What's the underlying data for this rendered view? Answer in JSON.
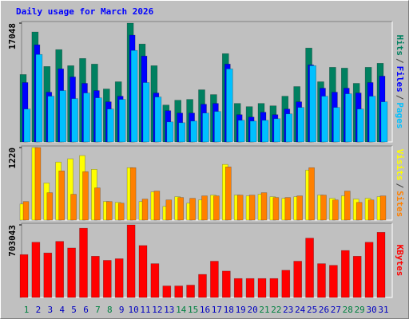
{
  "title": "Daily usage for March 2026",
  "legend_separator": "/",
  "chart_data": [
    {
      "type": "bar",
      "series": [
        {
          "name": "Hits",
          "color": "#008060",
          "values": [
            9677,
            15782,
            10829,
            13248,
            10944,
            11981,
            11174,
            7603,
            8640,
            17048,
            14054,
            10944,
            5299,
            5990,
            6106,
            7488,
            6797,
            12672,
            5530,
            5069,
            5530,
            5184,
            6566,
            7949,
            13478,
            8640,
            10714,
            10598,
            8410,
            10714,
            11290
          ]
        },
        {
          "name": "Files",
          "color": "#0000ff",
          "values": [
            8525,
            13939,
            7142,
            10483,
            9331,
            8410,
            7373,
            5760,
            6566,
            15322,
            12326,
            7027,
            4493,
            4147,
            4147,
            5414,
            5530,
            11174,
            3917,
            3571,
            4262,
            3917,
            4723,
            5760,
            11059,
            7718,
            7142,
            7718,
            7027,
            8525,
            9446
          ]
        },
        {
          "name": "Pages",
          "color": "#00c0ff",
          "values": [
            4723,
            12557,
            6566,
            7373,
            6221,
            7027,
            6336,
            4723,
            6106,
            13133,
            8525,
            6451,
            2880,
            2765,
            2995,
            4147,
            4378,
            10483,
            3110,
            2995,
            3110,
            3341,
            4032,
            4954,
            10944,
            6566,
            4954,
            6912,
            4723,
            6566,
            5760
          ]
        }
      ],
      "ylim": [
        0,
        17048
      ],
      "yticks": [
        17048
      ]
    },
    {
      "type": "bar",
      "series": [
        {
          "name": "Visits",
          "color": "#ffff00",
          "values": [
            271,
            1220,
            624,
            976,
            1031,
            1085,
            854,
            312,
            298,
            881,
            312,
            475,
            231,
            393,
            285,
            339,
            420,
            936,
            420,
            407,
            434,
            393,
            366,
            393,
            841,
            420,
            366,
            407,
            353,
            366,
            393
          ]
        },
        {
          "name": "Sites",
          "color": "#ff8000",
          "values": [
            312,
            1220,
            461,
            827,
            434,
            814,
            542,
            312,
            285,
            881,
            353,
            488,
            339,
            380,
            366,
            407,
            407,
            895,
            420,
            420,
            461,
            380,
            380,
            407,
            881,
            420,
            339,
            488,
            298,
            339,
            407
          ]
        }
      ],
      "ylim": [
        0,
        1220
      ],
      "yticks": [
        1220
      ]
    },
    {
      "type": "bar",
      "categories": [
        "1",
        "2",
        "3",
        "4",
        "5",
        "6",
        "7",
        "8",
        "9",
        "10",
        "11",
        "12",
        "13",
        "14",
        "15",
        "16",
        "17",
        "18",
        "19",
        "20",
        "21",
        "22",
        "23",
        "24",
        "25",
        "26",
        "27",
        "28",
        "29",
        "30",
        "31"
      ],
      "category_colors": [
        "#008040",
        "#0000c0",
        "#0000c0",
        "#0000c0",
        "#0000c0",
        "#0000c0",
        "#008040",
        "#008040",
        "#0000c0",
        "#0000c0",
        "#0000c0",
        "#0000c0",
        "#0000c0",
        "#008040",
        "#008040",
        "#0000c0",
        "#0000c0",
        "#0000c0",
        "#0000c0",
        "#0000c0",
        "#008040",
        "#008040",
        "#0000c0",
        "#0000c0",
        "#0000c0",
        "#0000c0",
        "#0000c0",
        "#008040",
        "#008040",
        "#0000c0",
        "#0000c0"
      ],
      "series": [
        {
          "name": "KBytes",
          "color": "#ff0000",
          "values": [
            415428,
            535263,
            431406,
            543252,
            479340,
            671076,
            399450,
            359505,
            375483,
            703043,
            503307,
            327549,
            111846,
            111846,
            119835,
            223692,
            351516,
            255648,
            183747,
            183747,
            183747,
            183747,
            263637,
            351516,
            575208,
            327549,
            311571,
            455373,
            399450,
            535263,
            631131
          ]
        }
      ],
      "ylim": [
        0,
        703043
      ],
      "yticks": [
        703043
      ]
    }
  ]
}
